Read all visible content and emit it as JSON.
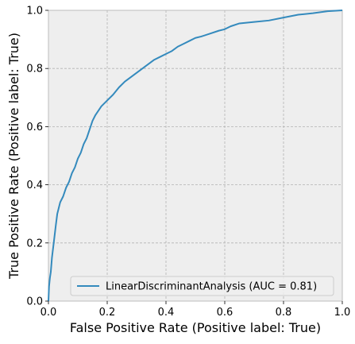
{
  "colors": {
    "plot_bg": "#eeeeee",
    "grid": "#b2b2b2",
    "frame": "#bcbcbc",
    "series": "#348abd"
  },
  "chart_data": {
    "type": "line",
    "title": "",
    "xlabel": "False Positive Rate (Positive label: True)",
    "ylabel": "True Positive Rate (Positive label: True)",
    "xlim": [
      0,
      1
    ],
    "ylim": [
      0,
      1
    ],
    "xticks": [
      "0.0",
      "0.2",
      "0.4",
      "0.6",
      "0.8",
      "1.0"
    ],
    "yticks": [
      "0.0",
      "0.2",
      "0.4",
      "0.6",
      "0.8",
      "1.0"
    ],
    "grid": true,
    "legend_position": "lower-right",
    "series": [
      {
        "name": "LinearDiscriminantAnalysis (AUC = 0.81)",
        "x": [
          0.0,
          0.002,
          0.005,
          0.008,
          0.012,
          0.018,
          0.025,
          0.03,
          0.035,
          0.04,
          0.05,
          0.06,
          0.07,
          0.08,
          0.09,
          0.1,
          0.11,
          0.12,
          0.13,
          0.14,
          0.15,
          0.16,
          0.17,
          0.18,
          0.2,
          0.22,
          0.24,
          0.26,
          0.28,
          0.3,
          0.32,
          0.34,
          0.36,
          0.38,
          0.4,
          0.42,
          0.44,
          0.46,
          0.48,
          0.5,
          0.52,
          0.55,
          0.58,
          0.6,
          0.62,
          0.65,
          0.7,
          0.75,
          0.8,
          0.85,
          0.9,
          0.95,
          1.0
        ],
        "y": [
          0.0,
          0.05,
          0.08,
          0.1,
          0.15,
          0.2,
          0.26,
          0.3,
          0.32,
          0.34,
          0.36,
          0.39,
          0.41,
          0.44,
          0.46,
          0.49,
          0.51,
          0.54,
          0.56,
          0.59,
          0.62,
          0.64,
          0.655,
          0.67,
          0.69,
          0.71,
          0.735,
          0.755,
          0.77,
          0.785,
          0.8,
          0.815,
          0.83,
          0.84,
          0.85,
          0.86,
          0.875,
          0.885,
          0.895,
          0.905,
          0.91,
          0.92,
          0.93,
          0.935,
          0.945,
          0.955,
          0.96,
          0.965,
          0.975,
          0.985,
          0.99,
          0.997,
          1.0
        ]
      }
    ]
  }
}
